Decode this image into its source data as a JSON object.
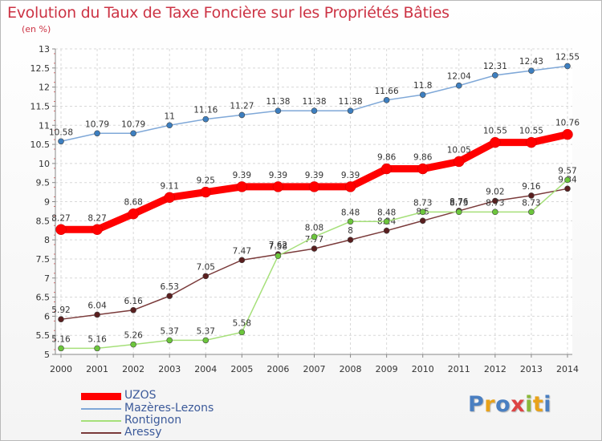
{
  "title": "Evolution du Taux de Taxe Foncière sur les Propriétés Bâties",
  "unit_label": "(en %)",
  "logo": {
    "text": "Proxiti",
    "colors": [
      "#4a7fc1",
      "#e8a21a",
      "#4a7fc1",
      "#d44",
      "#8ab83a",
      "#e8a21a",
      "#4a7fc1"
    ]
  },
  "chart_data": {
    "type": "line",
    "title": "Evolution du Taux de Taxe Foncière sur les Propriétés Bâties",
    "ylabel": "(en %)",
    "xlabel": "",
    "x": [
      "2000",
      "2001",
      "2002",
      "2003",
      "2004",
      "2005",
      "2006",
      "2007",
      "2008",
      "2009",
      "2010",
      "2011",
      "2012",
      "2013",
      "2014"
    ],
    "ylim": [
      5,
      13
    ],
    "yticks": [
      "5",
      "5.5",
      "6",
      "6.5",
      "7",
      "7.5",
      "8",
      "8.5",
      "9",
      "9.5",
      "10",
      "10.5",
      "11",
      "11.5",
      "12",
      "12.5",
      "13"
    ],
    "grid": true,
    "legend_position": "bottom-left",
    "series": [
      {
        "name": "UZOS",
        "color": "#ff0000",
        "marker": "#ff0000",
        "values": [
          8.27,
          8.27,
          8.68,
          9.11,
          9.25,
          9.39,
          9.39,
          9.39,
          9.39,
          9.86,
          9.86,
          10.05,
          10.55,
          10.55,
          10.76
        ],
        "labels": [
          "8.27",
          "8.27",
          "8.68",
          "9.11",
          "9.25",
          "9.39",
          "9.39",
          "9.39",
          "9.39",
          "9.86",
          "9.86",
          "10.05",
          "10.55",
          "10.55",
          "10.76"
        ]
      },
      {
        "name": "Mazères-Lezons",
        "color": "#7fa8d8",
        "marker": "#3d7fc0",
        "values": [
          10.58,
          10.79,
          10.79,
          11,
          11.16,
          11.27,
          11.38,
          11.38,
          11.38,
          11.66,
          11.8,
          12.04,
          12.31,
          12.43,
          12.55
        ],
        "labels": [
          "10.58",
          "10.79",
          "10.79",
          "11",
          "11.16",
          "11.27",
          "11.38",
          "11.38",
          "11.38",
          "11.66",
          "11.8",
          "12.04",
          "12.31",
          "12.43",
          "12.55"
        ]
      },
      {
        "name": "Rontignon",
        "color": "#a6e07a",
        "marker": "#6cc63c",
        "values": [
          5.16,
          5.16,
          5.26,
          5.37,
          5.37,
          5.58,
          7.58,
          8.08,
          8.48,
          8.48,
          8.73,
          8.73,
          8.73,
          8.73,
          9.57
        ],
        "labels": [
          "5.16",
          "5.16",
          "5.26",
          "5.37",
          "5.37",
          "5.58",
          "7.58",
          "8.08",
          "8.48",
          "8.48",
          "8.73",
          "8.73",
          "8.73",
          "8.73",
          "9.57"
        ]
      },
      {
        "name": "Aressy",
        "color": "#7a3a3a",
        "marker": "#5a1f1f",
        "values": [
          5.92,
          6.04,
          6.16,
          6.53,
          7.05,
          7.47,
          7.62,
          7.77,
          8,
          8.24,
          8.5,
          8.76,
          9.02,
          9.16,
          9.34
        ],
        "labels": [
          "5.92",
          "6.04",
          "6.16",
          "6.53",
          "7.05",
          "7.47",
          "7.62",
          "7.77",
          "8",
          "8.24",
          "8.5",
          "8.76",
          "9.02",
          "9.16",
          "9.34"
        ]
      }
    ]
  }
}
